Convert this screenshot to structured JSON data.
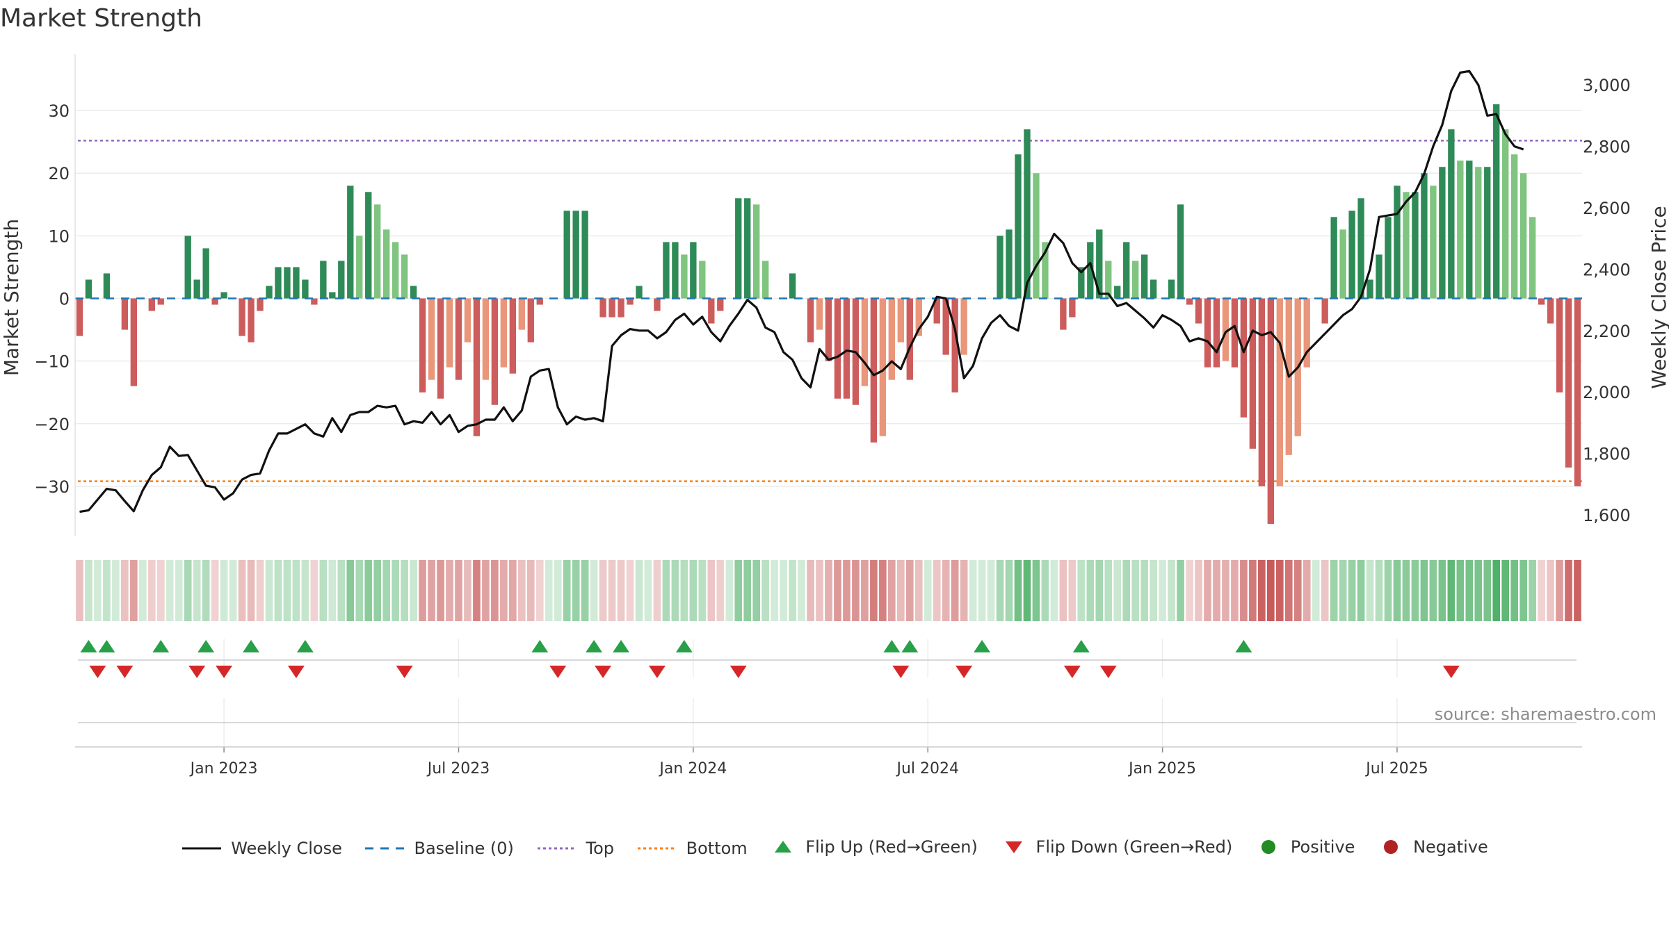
{
  "title": "Market Strength",
  "source": "source: sharemaestro.com",
  "colors": {
    "pos_strong": "#2e8b57",
    "pos_weak": "#7fc47f",
    "neg_strong": "#cd5c5c",
    "neg_weak": "#e9967a",
    "close": "#111111",
    "baseline": "#1f77b4",
    "top": "#9467bd",
    "bottom": "#ff7f0e",
    "flip_up": "#27a048",
    "flip_down": "#d62728",
    "positive": "#228b22",
    "negative": "#b22222"
  },
  "chart_data": {
    "type": "bar+line",
    "title": "Market Strength",
    "ylabel_left": "Market Strength",
    "ylabel_right": "Weekly Close Price",
    "left_ylim": [
      -38,
      39
    ],
    "left_ticks": [
      30,
      20,
      10,
      0,
      -10,
      -20,
      -30
    ],
    "left_tick_labels": [
      "30",
      "20",
      "10",
      "0",
      "−10",
      "−20",
      "−30"
    ],
    "right_ylim": [
      1530,
      3100
    ],
    "right_ticks": [
      3000,
      2800,
      2600,
      2400,
      2200,
      2000,
      1800,
      1600
    ],
    "right_tick_labels": [
      "3,000",
      "2,800",
      "2,600",
      "2,400",
      "2,200",
      "2,000",
      "1,800",
      "1,600"
    ],
    "top_level": 25.2,
    "bottom_level": -29.2,
    "baseline": 0,
    "x_tick_labels": [
      "Jan 2023",
      "Jul 2023",
      "Jan 2024",
      "Jul 2024",
      "Jan 2025",
      "Jul 2025"
    ],
    "x_tick_weeks": [
      16,
      42,
      68,
      94,
      120,
      146
    ],
    "strength": [
      -6,
      3,
      0,
      4,
      0,
      -5,
      -14,
      0,
      -2,
      -1,
      0,
      0,
      10,
      3,
      8,
      -1,
      1,
      0,
      -6,
      -7,
      -2,
      2,
      5,
      5,
      5,
      3,
      -1,
      6,
      1,
      6,
      18,
      10,
      17,
      15,
      11,
      9,
      7,
      2,
      -15,
      -13,
      -16,
      -11,
      -13,
      -7,
      -22,
      -13,
      -17,
      -11,
      -12,
      -5,
      -7,
      -1,
      0,
      0,
      14,
      14,
      14,
      0,
      -3,
      -3,
      -3,
      -1,
      2,
      0,
      -2,
      9,
      9,
      7,
      9,
      6,
      -4,
      -2,
      0,
      16,
      16,
      15,
      6,
      0,
      0,
      4,
      0,
      -7,
      -5,
      -10,
      -16,
      -16,
      -17,
      -14,
      -23,
      -22,
      -13,
      -7,
      -13,
      -6,
      0,
      -4,
      -9,
      -15,
      -9,
      0,
      0,
      0,
      10,
      11,
      23,
      27,
      20,
      9,
      0,
      -5,
      -3,
      5,
      9,
      11,
      6,
      2,
      9,
      6,
      7,
      3,
      0,
      3,
      15,
      -1,
      -4,
      -11,
      -11,
      -10,
      -11,
      -19,
      -24,
      -30,
      -36,
      -30,
      -25,
      -22,
      -11,
      0,
      -4,
      13,
      11,
      14,
      16,
      3,
      7,
      13,
      18,
      17,
      17,
      20,
      18,
      21,
      27,
      22,
      22,
      21,
      21,
      31,
      27,
      23,
      20,
      13,
      -1,
      -4,
      -15,
      -27,
      -30
    ],
    "close": [
      1610,
      1615,
      1650,
      1685,
      1680,
      1645,
      1612,
      1680,
      1730,
      1755,
      1822,
      1792,
      1795,
      1745,
      1695,
      1690,
      1650,
      1670,
      1715,
      1730,
      1735,
      1810,
      1865,
      1865,
      1880,
      1895,
      1865,
      1855,
      1915,
      1870,
      1925,
      1935,
      1935,
      1955,
      1950,
      1955,
      1895,
      1905,
      1900,
      1935,
      1895,
      1925,
      1870,
      1890,
      1895,
      1910,
      1910,
      1950,
      1905,
      1940,
      2050,
      2070,
      2075,
      1950,
      1895,
      1920,
      1910,
      1915,
      1905,
      2150,
      2185,
      2205,
      2200,
      2200,
      2175,
      2195,
      2235,
      2255,
      2220,
      2245,
      2195,
      2165,
      2215,
      2255,
      2300,
      2275,
      2210,
      2195,
      2130,
      2105,
      2045,
      2015,
      2140,
      2105,
      2115,
      2135,
      2130,
      2095,
      2055,
      2070,
      2100,
      2075,
      2145,
      2205,
      2245,
      2310,
      2305,
      2205,
      2045,
      2085,
      2175,
      2225,
      2250,
      2215,
      2200,
      2355,
      2410,
      2455,
      2515,
      2485,
      2420,
      2390,
      2420,
      2320,
      2320,
      2280,
      2290,
      2265,
      2240,
      2210,
      2250,
      2235,
      2215,
      2165,
      2175,
      2165,
      2130,
      2195,
      2215,
      2130,
      2200,
      2185,
      2195,
      2160,
      2050,
      2080,
      2130,
      2160,
      2190,
      2220,
      2250,
      2270,
      2310,
      2400,
      2570,
      2575,
      2580,
      2620,
      2650,
      2710,
      2800,
      2870,
      2980,
      3040,
      3045,
      3000,
      2900,
      2905,
      2840,
      2800,
      2790
    ],
    "flip_up": [
      1,
      3,
      9,
      14,
      19,
      25,
      51,
      57,
      60,
      67,
      90,
      92,
      100,
      111,
      129
    ],
    "flip_down": [
      2,
      5,
      13,
      16,
      24,
      36,
      53,
      58,
      64,
      73,
      91,
      98,
      110,
      114,
      152
    ],
    "legend": [
      "Weekly Close",
      "Baseline (0)",
      "Top",
      "Bottom",
      "Flip Up (Red→Green)",
      "Flip Down (Green→Red)",
      "Positive",
      "Negative"
    ]
  }
}
